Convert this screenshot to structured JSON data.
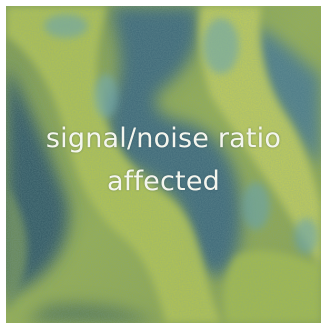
{
  "image": {
    "subject": "fluorescence-micrograph-tissue",
    "colors": {
      "background_dark": "#2f5560",
      "tissue_green": "#a8bf45",
      "tissue_yellow": "#cdd45a",
      "lumen_blue": "#3d6878",
      "highlight_cyan": "#5fa3bd",
      "border": "#ffffff",
      "caption_text": "#f4f6ee"
    }
  },
  "caption": {
    "line1": "signal/noise ratio",
    "line2": "affected"
  }
}
